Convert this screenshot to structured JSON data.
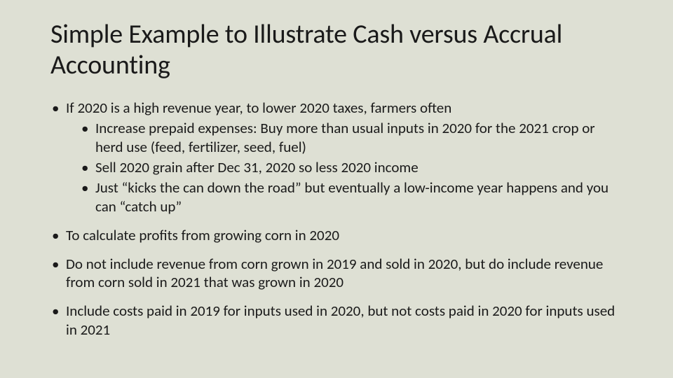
{
  "colors": {
    "background": "#dee0d4",
    "text": "#1a1a1a"
  },
  "typography": {
    "title_fontsize": 38,
    "body_fontsize": 21,
    "font_family": "Calibri"
  },
  "title": "Simple Example to Illustrate Cash versus Accrual Accounting",
  "bullets": [
    {
      "text": "If 2020 is a high revenue year, to lower 2020 taxes, farmers often",
      "children": [
        "Increase prepaid expenses: Buy more than usual inputs in 2020 for the 2021 crop or herd use (feed, fertilizer, seed, fuel)",
        "Sell 2020 grain after Dec 31, 2020 so less 2020 income",
        "Just “kicks the can down the road” but eventually a low-income year happens and you can “catch up”"
      ]
    },
    {
      "text": "To calculate profits from growing corn in 2020"
    },
    {
      "text": "Do not include revenue from corn grown in 2019 and sold in 2020, but do include revenue from corn sold in 2021 that was grown in 2020"
    },
    {
      "text": "Include costs paid in 2019 for inputs used in 2020, but not costs paid in 2020 for inputs used in 2021"
    }
  ]
}
